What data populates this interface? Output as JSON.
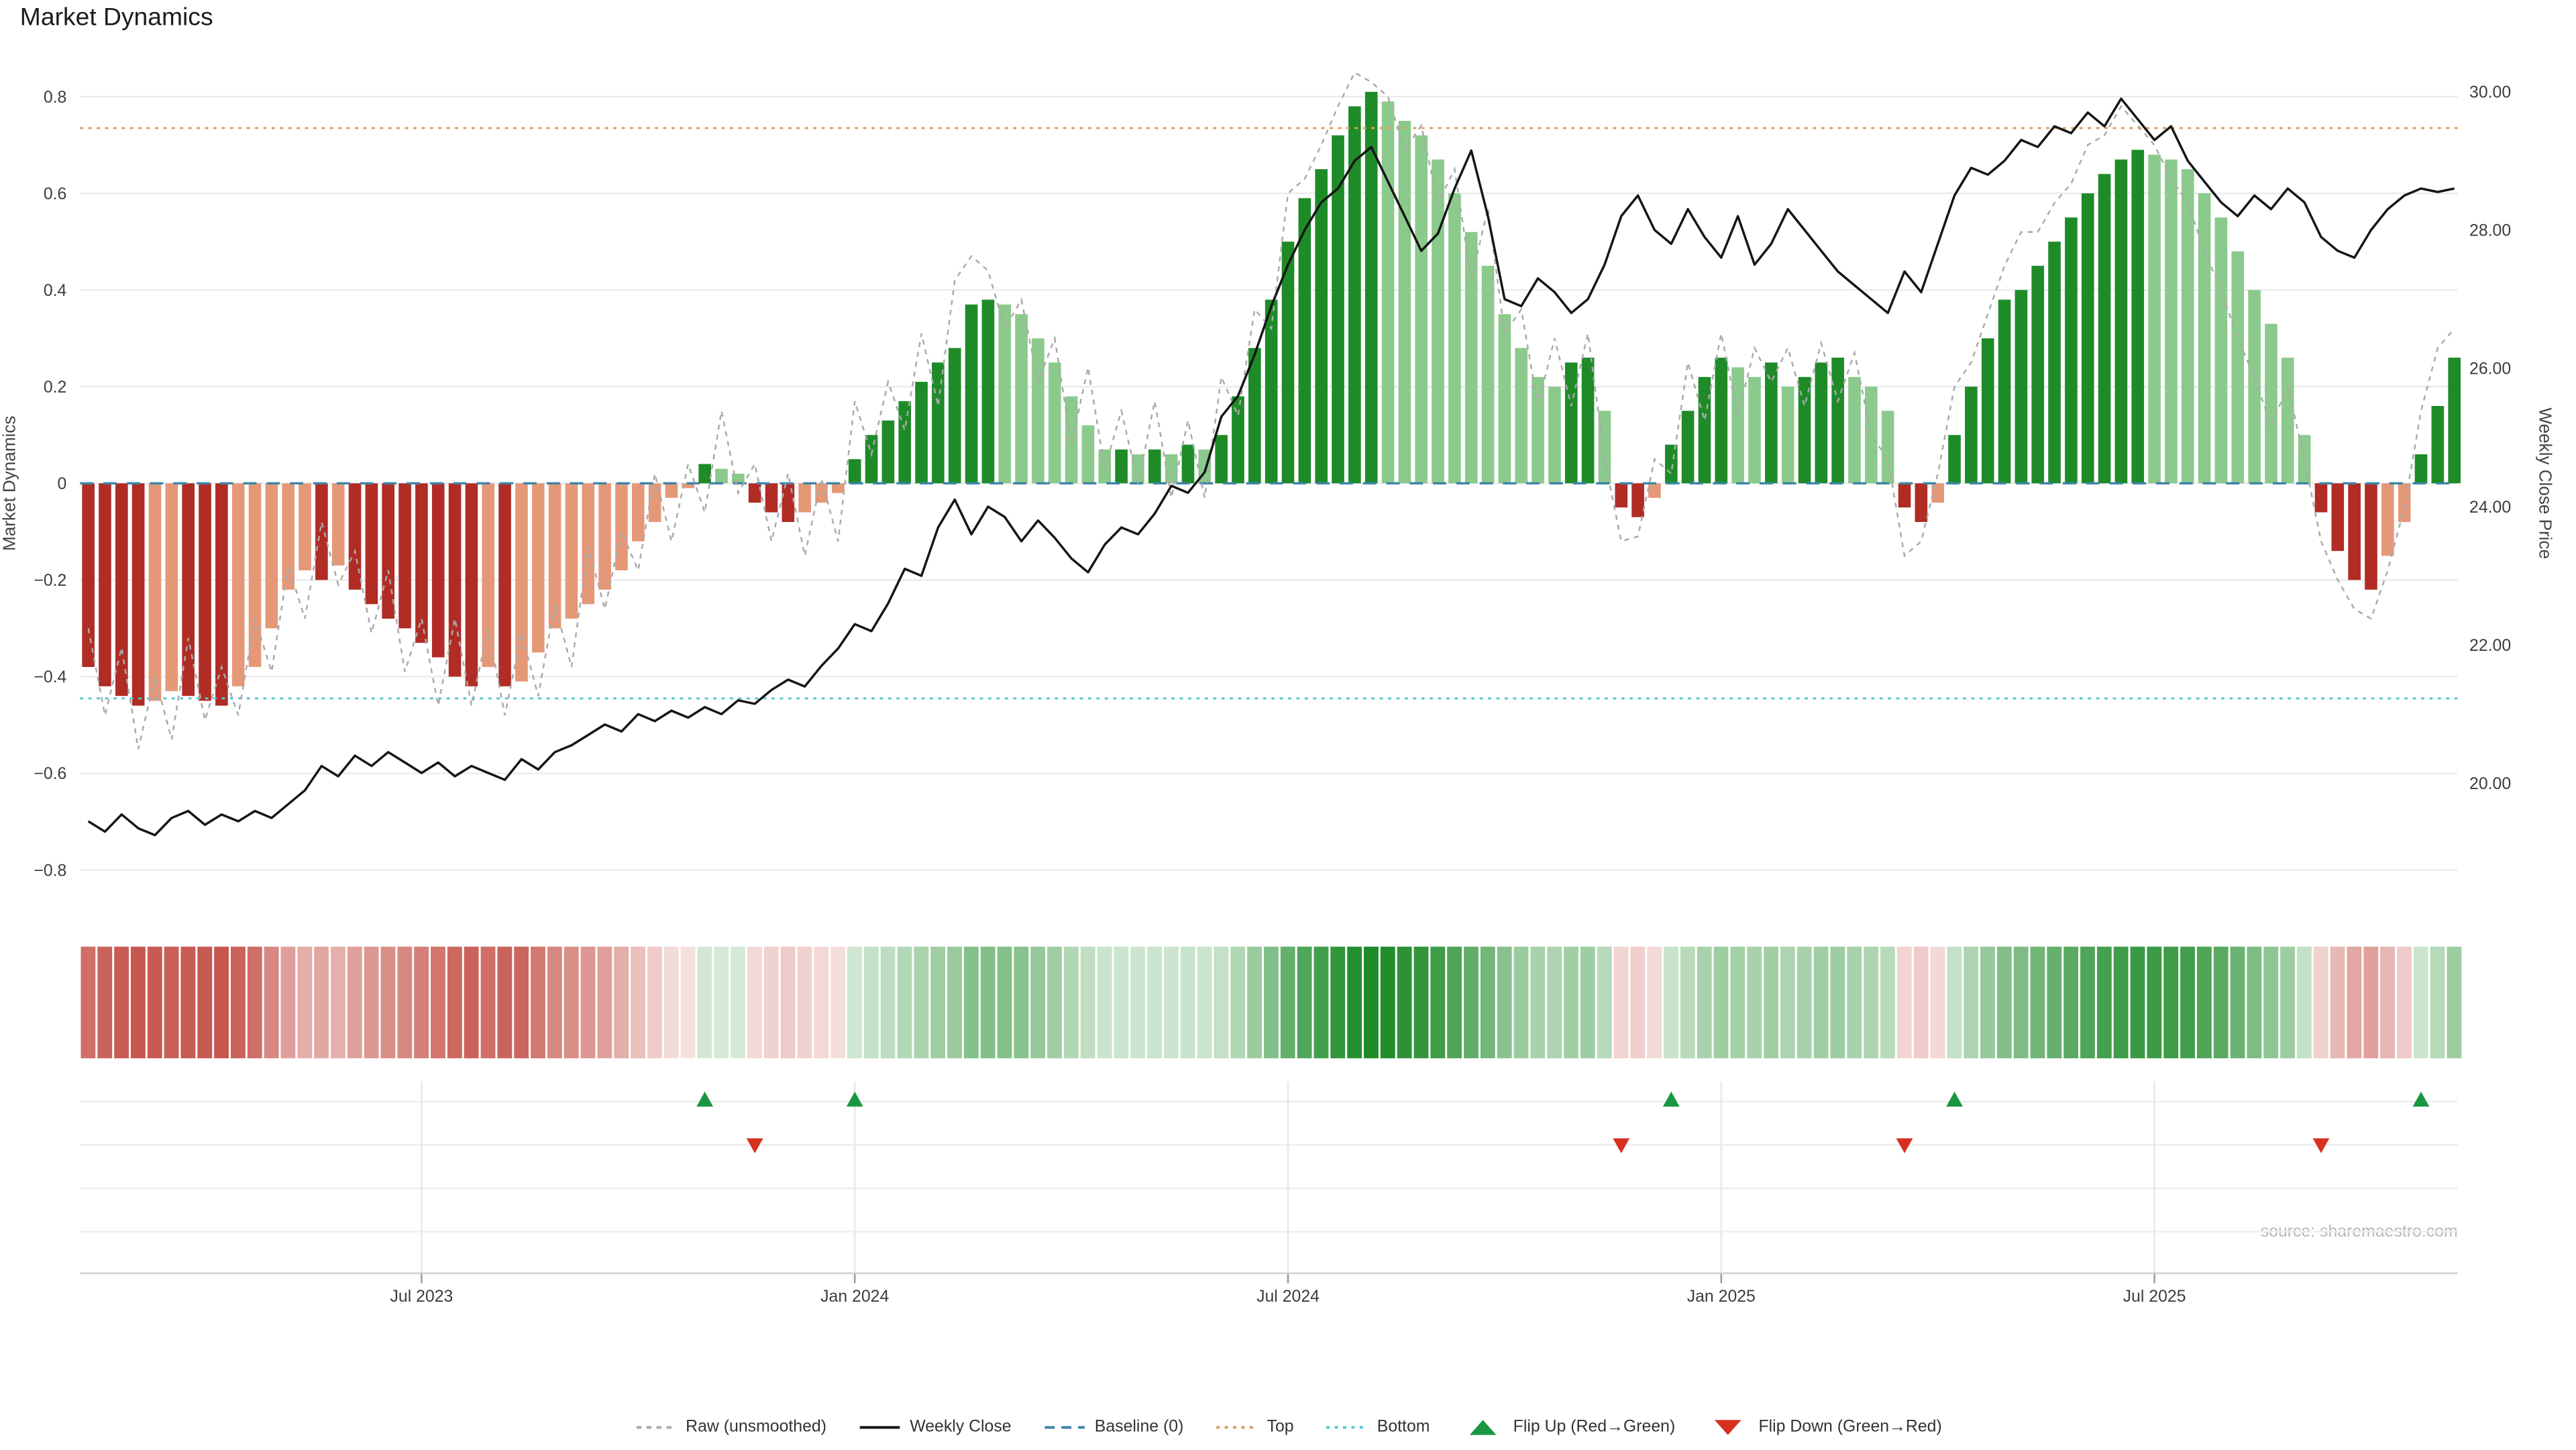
{
  "title": "Market Dynamics",
  "source": "source: sharemaestro.com",
  "axes": {
    "left_label": "Market Dynamics",
    "right_label": "Weekly Close Price",
    "left_tick_values": [
      0.8,
      0.6,
      0.4,
      0.2,
      0,
      -0.2,
      -0.4,
      -0.6,
      -0.8
    ],
    "left_tick_labels": [
      "0.8",
      "0.6",
      "0.4",
      "0.2",
      "0",
      "−0.2",
      "−0.4",
      "−0.6",
      "−0.8"
    ],
    "right_tick_values": [
      30,
      28,
      26,
      24,
      22,
      20
    ],
    "right_tick_labels": [
      "30.00",
      "28.00",
      "26.00",
      "24.00",
      "22.00",
      "20.00"
    ]
  },
  "colors": {
    "bar_pos_rising": "#1e8b28",
    "bar_pos_falling": "#8cc98c",
    "bar_neg_falling": "#b02c24",
    "bar_neg_rising": "#e59878",
    "heat_pos": "#1e8b28",
    "heat_neg": "#c0443a",
    "raw_line": "#aaaaaa",
    "close_line": "#151515",
    "baseline_line": "#3d85a8",
    "top_line": "#d9a05e",
    "bottom_line": "#57c5d5",
    "flip_up": "#1a9641",
    "flip_down": "#d7301f",
    "gridline": "#ebebeb",
    "axis_line": "#cfcfcf",
    "tick_text": "#3d3d3d",
    "source_text": "#b7b7b7"
  },
  "legend": [
    {
      "key": "raw",
      "label": "Raw (unsmoothed)",
      "symbol": "dashed-line",
      "color": "#aaaaaa"
    },
    {
      "key": "weekly-close",
      "label": "Weekly Close",
      "symbol": "solid-line",
      "color": "#151515"
    },
    {
      "key": "baseline",
      "label": "Baseline (0)",
      "symbol": "long-dash-line",
      "color": "#3d85a8"
    },
    {
      "key": "top",
      "label": "Top",
      "symbol": "dotted-line",
      "color": "#d9a05e"
    },
    {
      "key": "bottom",
      "label": "Bottom",
      "symbol": "dotted-line",
      "color": "#57c5d5"
    },
    {
      "key": "flip-up",
      "label": "Flip Up (Red→Green)",
      "symbol": "triangle-up",
      "color": "#1a9641"
    },
    {
      "key": "flip-down",
      "label": "Flip Down (Green→Red)",
      "symbol": "triangle-down",
      "color": "#d7301f"
    }
  ],
  "chart_data": {
    "type": "combo",
    "title": "Market Dynamics",
    "x_unit": "week",
    "n_weeks": 143,
    "x_tick_weeks": [
      20,
      46,
      72,
      98,
      124
    ],
    "x_tick_labels": [
      "Jul 2023",
      "Jan 2024",
      "Jul 2024",
      "Jan 2025",
      "Jul 2025"
    ],
    "baselines": {
      "baseline": 0,
      "top": 0.735,
      "bottom": -0.445
    },
    "flip_up_weeks": [
      37,
      46,
      95,
      112,
      140
    ],
    "flip_down_weeks": [
      40,
      92,
      109,
      134
    ],
    "left_axis_range": [
      -0.9,
      0.92
    ],
    "right_axis_range": [
      19.0,
      30.5
    ],
    "legend_position": "bottom-center",
    "grid": "horizontal-main, horizontal+vertical-lower",
    "series": [
      {
        "name": "Market Dynamics",
        "type": "bar",
        "axis": "left",
        "color_rule": "dark-green rising positive, light-green falling positive, dark-red falling negative, salmon rising negative",
        "values": [
          -0.38,
          -0.42,
          -0.44,
          -0.46,
          -0.45,
          -0.43,
          -0.44,
          -0.45,
          -0.46,
          -0.42,
          -0.38,
          -0.3,
          -0.22,
          -0.18,
          -0.2,
          -0.17,
          -0.22,
          -0.25,
          -0.28,
          -0.3,
          -0.33,
          -0.36,
          -0.4,
          -0.42,
          -0.38,
          -0.42,
          -0.41,
          -0.35,
          -0.3,
          -0.28,
          -0.25,
          -0.22,
          -0.18,
          -0.12,
          -0.08,
          -0.03,
          -0.01,
          0.04,
          0.03,
          0.02,
          -0.04,
          -0.06,
          -0.08,
          -0.06,
          -0.04,
          -0.02,
          0.05,
          0.1,
          0.13,
          0.17,
          0.21,
          0.25,
          0.28,
          0.37,
          0.38,
          0.37,
          0.35,
          0.3,
          0.25,
          0.18,
          0.12,
          0.07,
          0.07,
          0.06,
          0.07,
          0.06,
          0.08,
          0.07,
          0.1,
          0.18,
          0.28,
          0.38,
          0.5,
          0.59,
          0.65,
          0.72,
          0.78,
          0.81,
          0.79,
          0.75,
          0.72,
          0.67,
          0.6,
          0.52,
          0.45,
          0.35,
          0.28,
          0.22,
          0.2,
          0.25,
          0.26,
          0.15,
          -0.05,
          -0.07,
          -0.03,
          0.08,
          0.15,
          0.22,
          0.26,
          0.24,
          0.22,
          0.25,
          0.2,
          0.22,
          0.25,
          0.26,
          0.22,
          0.2,
          0.15,
          -0.05,
          -0.08,
          -0.04,
          0.1,
          0.2,
          0.3,
          0.38,
          0.4,
          0.45,
          0.5,
          0.55,
          0.6,
          0.64,
          0.67,
          0.69,
          0.68,
          0.67,
          0.65,
          0.6,
          0.55,
          0.48,
          0.4,
          0.33,
          0.26,
          0.1,
          -0.06,
          -0.14,
          -0.2,
          -0.22,
          -0.15,
          -0.08,
          0.06,
          0.16,
          0.26
        ]
      },
      {
        "name": "Raw (unsmoothed)",
        "type": "line",
        "dash": "dashed",
        "axis": "left",
        "values": [
          -0.3,
          -0.48,
          -0.34,
          -0.55,
          -0.4,
          -0.53,
          -0.32,
          -0.49,
          -0.38,
          -0.48,
          -0.28,
          -0.39,
          -0.17,
          -0.28,
          -0.08,
          -0.21,
          -0.14,
          -0.31,
          -0.18,
          -0.39,
          -0.28,
          -0.46,
          -0.28,
          -0.46,
          -0.3,
          -0.48,
          -0.31,
          -0.44,
          -0.25,
          -0.38,
          -0.13,
          -0.26,
          -0.1,
          -0.18,
          0.02,
          -0.12,
          0.04,
          -0.06,
          0.15,
          -0.02,
          0.04,
          -0.12,
          0.02,
          -0.15,
          0.01,
          -0.12,
          0.17,
          0.06,
          0.21,
          0.11,
          0.31,
          0.16,
          0.42,
          0.47,
          0.44,
          0.32,
          0.38,
          0.21,
          0.3,
          0.08,
          0.24,
          0.03,
          0.15,
          0.0,
          0.17,
          -0.03,
          0.13,
          -0.03,
          0.22,
          0.14,
          0.36,
          0.32,
          0.6,
          0.63,
          0.7,
          0.78,
          0.85,
          0.83,
          0.8,
          0.69,
          0.74,
          0.58,
          0.65,
          0.42,
          0.57,
          0.31,
          0.36,
          0.16,
          0.3,
          0.16,
          0.31,
          0.05,
          -0.12,
          -0.11,
          0.05,
          0.02,
          0.25,
          0.13,
          0.31,
          0.14,
          0.28,
          0.21,
          0.28,
          0.16,
          0.29,
          0.17,
          0.27,
          0.1,
          0.05,
          -0.15,
          -0.12,
          0.02,
          0.2,
          0.25,
          0.35,
          0.45,
          0.52,
          0.52,
          0.58,
          0.62,
          0.7,
          0.72,
          0.78,
          0.74,
          0.7,
          0.63,
          0.58,
          0.48,
          0.4,
          0.3,
          0.22,
          0.12,
          0.2,
          0.05,
          -0.12,
          -0.2,
          -0.26,
          -0.28,
          -0.18,
          -0.05,
          0.15,
          0.28,
          0.32
        ]
      },
      {
        "name": "Weekly Close",
        "type": "line",
        "axis": "right",
        "values": [
          19.45,
          19.3,
          19.55,
          19.35,
          19.25,
          19.5,
          19.6,
          19.4,
          19.55,
          19.45,
          19.6,
          19.5,
          19.7,
          19.9,
          20.25,
          20.1,
          20.4,
          20.25,
          20.45,
          20.3,
          20.15,
          20.3,
          20.1,
          20.25,
          20.15,
          20.05,
          20.35,
          20.2,
          20.45,
          20.55,
          20.7,
          20.85,
          20.75,
          21.0,
          20.9,
          21.05,
          20.95,
          21.1,
          21.0,
          21.2,
          21.15,
          21.35,
          21.5,
          21.4,
          21.7,
          21.95,
          22.3,
          22.2,
          22.6,
          23.1,
          23.0,
          23.7,
          24.1,
          23.6,
          24.0,
          23.85,
          23.5,
          23.8,
          23.55,
          23.25,
          23.05,
          23.45,
          23.7,
          23.6,
          23.9,
          24.3,
          24.2,
          24.5,
          25.3,
          25.6,
          26.2,
          26.9,
          27.5,
          28.0,
          28.4,
          28.6,
          29.0,
          29.2,
          28.7,
          28.2,
          27.7,
          27.95,
          28.6,
          29.15,
          28.2,
          27.0,
          26.9,
          27.3,
          27.1,
          26.8,
          27.0,
          27.5,
          28.2,
          28.5,
          28.0,
          27.8,
          28.3,
          27.9,
          27.6,
          28.2,
          27.5,
          27.8,
          28.3,
          28.0,
          27.7,
          27.4,
          27.2,
          27.0,
          26.8,
          27.4,
          27.1,
          27.8,
          28.5,
          28.9,
          28.8,
          29.0,
          29.3,
          29.2,
          29.5,
          29.4,
          29.7,
          29.5,
          29.9,
          29.6,
          29.3,
          29.5,
          29.0,
          28.7,
          28.4,
          28.2,
          28.5,
          28.3,
          28.6,
          28.4,
          27.9,
          27.7,
          27.6,
          28.0,
          28.3,
          28.5,
          28.6,
          28.55,
          28.6
        ]
      }
    ],
    "heatmap": {
      "note": "strip colored by Market Dynamics values",
      "source_series": "Market Dynamics"
    }
  }
}
